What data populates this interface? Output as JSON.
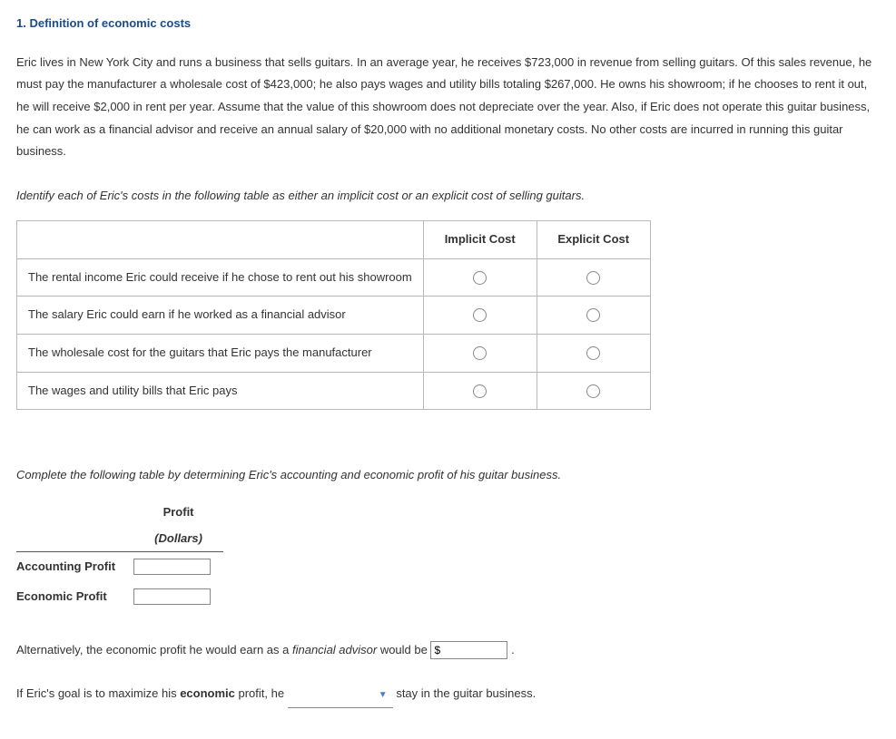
{
  "question": {
    "title": "1. Definition of economic costs",
    "body": "Eric lives in New York City and runs a business that sells guitars. In an average year, he receives $723,000 in revenue from selling guitars. Of this sales revenue, he must pay the manufacturer a wholesale cost of $423,000; he also pays wages and utility bills totaling $267,000. He owns his showroom; if he chooses to rent it out, he will receive $2,000 in rent per year. Assume that the value of this showroom does not depreciate over the year. Also, if Eric does not operate this guitar business, he can work as a financial advisor and receive an annual salary of $20,000 with no additional monetary costs. No other costs are incurred in running this guitar business."
  },
  "cost_table": {
    "instruction": "Identify each of Eric's costs in the following table as either an implicit cost or an explicit cost of selling guitars.",
    "headers": {
      "blank": "",
      "implicit": "Implicit Cost",
      "explicit": "Explicit Cost"
    },
    "rows": [
      {
        "label": "The rental income Eric could receive if he chose to rent out his showroom"
      },
      {
        "label": "The salary Eric could earn if he worked as a financial advisor"
      },
      {
        "label": "The wholesale cost for the guitars that Eric pays the manufacturer"
      },
      {
        "label": "The wages and utility bills that Eric pays"
      }
    ]
  },
  "profit_table": {
    "instruction": "Complete the following table by determining Eric's accounting and economic profit of his guitar business.",
    "headers": {
      "profit": "Profit",
      "unit": "(Dollars)"
    },
    "rows": [
      {
        "label": "Accounting Profit"
      },
      {
        "label": "Economic Profit"
      }
    ]
  },
  "sentence1": {
    "pre": "Alternatively, the economic profit he would earn as a ",
    "italic": "financial advisor",
    "post": " would be ",
    "prefix": "$",
    "end": "."
  },
  "sentence2": {
    "pre": "If Eric's goal is to maximize his ",
    "bold": "economic",
    "mid": " profit, he ",
    "post": " stay in the guitar business."
  }
}
